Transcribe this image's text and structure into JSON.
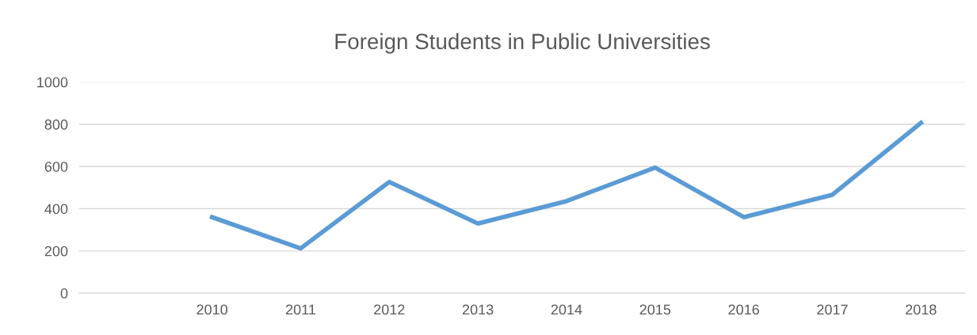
{
  "chart_data": {
    "type": "line",
    "title": "Foreign Students in Public Universities",
    "categories": [
      null,
      "2010",
      "2011",
      "2012",
      "2013",
      "2014",
      "2015",
      "2016",
      "2017",
      "2018"
    ],
    "series": [
      {
        "color": "#5b9bd5",
        "values": [
          null,
          360,
          212,
          527,
          330,
          436,
          595,
          360,
          466,
          807
        ]
      }
    ],
    "ylim": [
      0,
      1000
    ],
    "yticks": [
      0,
      200,
      400,
      600,
      800,
      1000
    ],
    "grid": "y",
    "legend": false,
    "marker": "none",
    "line_style": "solid"
  }
}
